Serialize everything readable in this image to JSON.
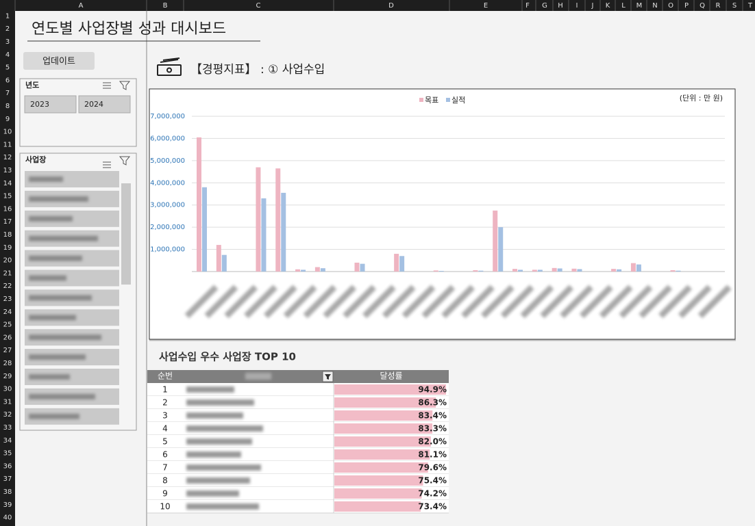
{
  "sheet": {
    "columns": [
      "A",
      "B",
      "C",
      "D",
      "E",
      "F",
      "G",
      "H",
      "I",
      "J",
      "K",
      "L",
      "M",
      "N",
      "O",
      "P",
      "Q",
      "R",
      "S",
      "T"
    ],
    "rows": [
      1,
      2,
      3,
      4,
      5,
      6,
      7,
      8,
      9,
      10,
      11,
      12,
      13,
      14,
      15,
      16,
      17,
      18,
      19,
      20,
      21,
      22,
      23,
      24,
      25,
      26,
      27,
      28,
      29,
      30,
      31,
      32,
      33,
      34,
      35,
      36,
      37,
      38,
      39,
      40
    ]
  },
  "header": {
    "title": "연도별 사업장별 성과 대시보드",
    "button": "업데이트"
  },
  "slicers": [
    {
      "title": "년도",
      "items": [
        "2023",
        "2024"
      ]
    },
    {
      "title": "사업장"
    }
  ],
  "section": {
    "title": "【경평지표】 : ① 사업수입"
  },
  "chart_data": {
    "type": "bar",
    "annotation": "(단위 : 만 원)",
    "legend": "top",
    "categories": [
      null,
      null,
      null,
      null,
      null,
      null,
      null,
      null,
      null,
      null,
      null,
      null,
      null,
      null,
      null,
      null,
      null,
      null,
      null,
      null,
      null,
      null,
      null,
      null,
      null,
      null,
      null
    ],
    "series": [
      {
        "name": "목표",
        "color": "#eeb4c1",
        "values": [
          6050000,
          1200000,
          0,
          4700000,
          4650000,
          100000,
          200000,
          0,
          400000,
          0,
          800000,
          0,
          50000,
          0,
          60000,
          2750000,
          120000,
          80000,
          160000,
          130000,
          0,
          120000,
          380000,
          0,
          60000,
          0,
          0
        ]
      },
      {
        "name": "실적",
        "color": "#a4c0e2",
        "values": [
          3800000,
          750000,
          0,
          3300000,
          3550000,
          80000,
          150000,
          0,
          350000,
          0,
          700000,
          0,
          30000,
          0,
          40000,
          2000000,
          80000,
          80000,
          140000,
          110000,
          0,
          100000,
          320000,
          0,
          40000,
          0,
          0
        ]
      }
    ],
    "ylim": [
      0,
      7000000
    ],
    "yticks": [
      {
        "value": 1000000,
        "label": "1,000,000"
      },
      {
        "value": 2000000,
        "label": "2,000,000"
      },
      {
        "value": 3000000,
        "label": "3,000,000"
      },
      {
        "value": 4000000,
        "label": "4,000,000"
      },
      {
        "value": 5000000,
        "label": "5,000,000"
      },
      {
        "value": 6000000,
        "label": "6,000,000"
      },
      {
        "value": 7000000,
        "label": "7,000,000"
      }
    ],
    "grid": true
  },
  "ranking": {
    "title": "사업수입 우수 사업장 TOP 10",
    "headers": [
      "순번",
      "달성률"
    ],
    "ranks": [
      1,
      2,
      3,
      4,
      5,
      6,
      7,
      8,
      9,
      10
    ],
    "rates": [
      94.9,
      86.3,
      83.4,
      83.3,
      82.0,
      81.1,
      79.6,
      75.4,
      74.2,
      73.4
    ],
    "rate_labels": [
      "94.9%",
      "86.3%",
      "83.4%",
      "83.3%",
      "82.0%",
      "81.1%",
      "79.6%",
      "75.4%",
      "74.2%",
      "73.4%"
    ],
    "color": "#f2bcc7"
  }
}
